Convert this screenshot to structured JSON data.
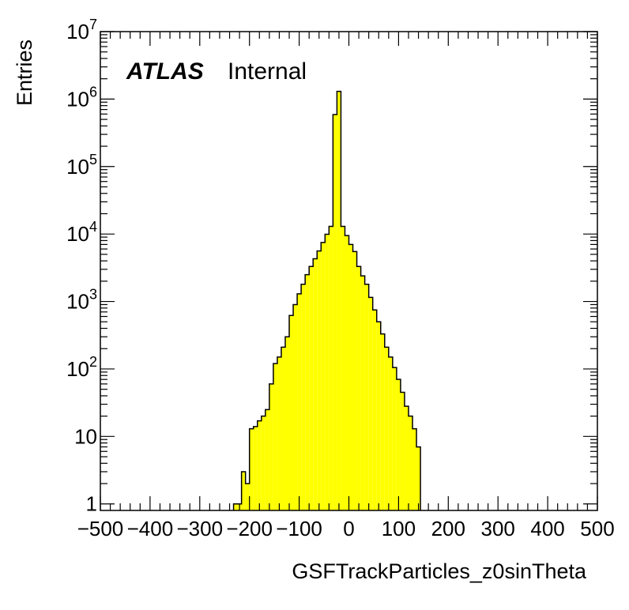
{
  "chart_data": {
    "type": "histogram",
    "xlabel": "GSFTrackParticles_z0sinTheta",
    "ylabel": "Entries",
    "annotation": {
      "experiment": "ATLAS",
      "status": "Internal"
    },
    "xlim": [
      -500,
      500
    ],
    "ylim": [
      0.8,
      10000000
    ],
    "y_scale": "log",
    "x_ticks": [
      "−500",
      "−400",
      "−300",
      "−200",
      "−100",
      "0",
      "100",
      "200",
      "300",
      "400",
      "500"
    ],
    "y_ticks": [
      {
        "value": 1,
        "base": "1",
        "exp": ""
      },
      {
        "value": 10,
        "base": "10",
        "exp": ""
      },
      {
        "value": 100,
        "base": "10",
        "exp": "2"
      },
      {
        "value": 1000,
        "base": "10",
        "exp": "3"
      },
      {
        "value": 10000,
        "base": "10",
        "exp": "4"
      },
      {
        "value": 100000,
        "base": "10",
        "exp": "5"
      },
      {
        "value": 1000000,
        "base": "10",
        "exp": "6"
      },
      {
        "value": 10000000,
        "base": "10",
        "exp": "7"
      }
    ],
    "fill_color": "#ffff00",
    "line_color": "#000000",
    "bin_width": 8,
    "bins": [
      [
        -232,
        1
      ],
      [
        -224,
        1
      ],
      [
        -216,
        3
      ],
      [
        -208,
        2
      ],
      [
        -200,
        13
      ],
      [
        -192,
        14
      ],
      [
        -184,
        17
      ],
      [
        -176,
        20
      ],
      [
        -168,
        25
      ],
      [
        -160,
        60
      ],
      [
        -152,
        120
      ],
      [
        -144,
        150
      ],
      [
        -136,
        210
      ],
      [
        -128,
        300
      ],
      [
        -120,
        620
      ],
      [
        -112,
        900
      ],
      [
        -104,
        1300
      ],
      [
        -96,
        1800
      ],
      [
        -88,
        2500
      ],
      [
        -80,
        3300
      ],
      [
        -72,
        4300
      ],
      [
        -64,
        5600
      ],
      [
        -56,
        7500
      ],
      [
        -48,
        9900
      ],
      [
        -40,
        13000
      ],
      [
        -32,
        590000
      ],
      [
        -24,
        1300000
      ],
      [
        -16,
        13000
      ],
      [
        -8,
        9500
      ],
      [
        0,
        7000
      ],
      [
        8,
        5500
      ],
      [
        16,
        3300
      ],
      [
        24,
        2400
      ],
      [
        32,
        1800
      ],
      [
        40,
        1150
      ],
      [
        48,
        750
      ],
      [
        56,
        500
      ],
      [
        64,
        330
      ],
      [
        72,
        210
      ],
      [
        80,
        150
      ],
      [
        88,
        105
      ],
      [
        96,
        70
      ],
      [
        104,
        45
      ],
      [
        112,
        28
      ],
      [
        120,
        20
      ],
      [
        128,
        13
      ],
      [
        136,
        7
      ]
    ]
  }
}
